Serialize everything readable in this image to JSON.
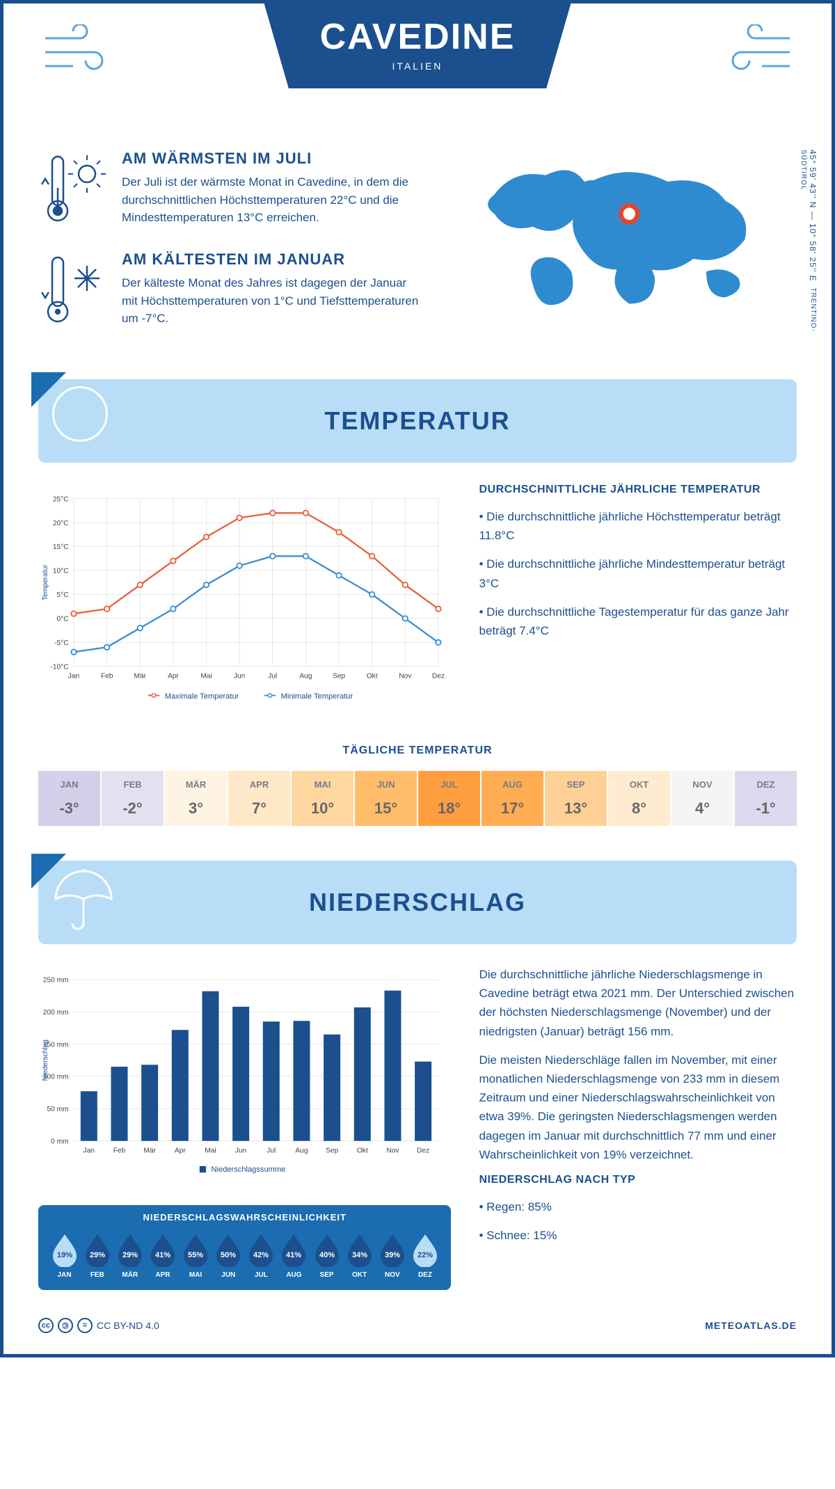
{
  "header": {
    "title": "CAVEDINE",
    "subtitle": "ITALIEN"
  },
  "coords": {
    "text": "45° 59' 43'' N — 10° 58' 25'' E",
    "region": "TRENTINO-SÜDTIROL"
  },
  "facts": {
    "warm": {
      "title": "AM WÄRMSTEN IM JULI",
      "text": "Der Juli ist der wärmste Monat in Cavedine, in dem die durchschnittlichen Höchsttemperaturen 22°C und die Mindesttemperaturen 13°C erreichen."
    },
    "cold": {
      "title": "AM KÄLTESTEN IM JANUAR",
      "text": "Der kälteste Monat des Jahres ist dagegen der Januar mit Höchsttemperaturen von 1°C und Tiefsttemperaturen um -7°C."
    }
  },
  "sections": {
    "temp": "TEMPERATUR",
    "precip": "NIEDERSCHLAG"
  },
  "temp_chart": {
    "type": "line",
    "months": [
      "Jan",
      "Feb",
      "Mär",
      "Apr",
      "Mai",
      "Jun",
      "Jul",
      "Aug",
      "Sep",
      "Okt",
      "Nov",
      "Dez"
    ],
    "max": [
      1,
      2,
      7,
      12,
      17,
      21,
      22,
      22,
      18,
      13,
      7,
      2
    ],
    "min": [
      -7,
      -6,
      -2,
      2,
      7,
      11,
      13,
      13,
      9,
      5,
      0,
      -5
    ],
    "ylim": [
      -10,
      25
    ],
    "ystep": 5,
    "ylabel": "Temperatur",
    "legend_max": "Maximale Temperatur",
    "legend_min": "Minimale Temperatur",
    "color_max": "#e8603c",
    "color_min": "#3b8ed4",
    "grid_color": "#cccccc",
    "bg": "#ffffff"
  },
  "temp_summary": {
    "title": "DURCHSCHNITTLICHE JÄHRLICHE TEMPERATUR",
    "items": [
      "Die durchschnittliche jährliche Höchsttemperatur beträgt 11.8°C",
      "Die durchschnittliche jährliche Mindesttemperatur beträgt 3°C",
      "Die durchschnittliche Tagestemperatur für das ganze Jahr beträgt 7.4°C"
    ]
  },
  "daily_temp": {
    "title": "TÄGLICHE TEMPERATUR",
    "months": [
      "JAN",
      "FEB",
      "MÄR",
      "APR",
      "MAI",
      "JUN",
      "JUL",
      "AUG",
      "SEP",
      "OKT",
      "NOV",
      "DEZ"
    ],
    "values": [
      "-3°",
      "-2°",
      "3°",
      "7°",
      "10°",
      "15°",
      "18°",
      "17°",
      "13°",
      "8°",
      "4°",
      "-1°"
    ],
    "colors": [
      "#d3d0ea",
      "#e3e0f0",
      "#fff4e3",
      "#ffe8c7",
      "#ffd8a0",
      "#ffbd6a",
      "#ff9e3e",
      "#ffac52",
      "#ffd095",
      "#ffecd0",
      "#f5f5f5",
      "#dcd9ee"
    ]
  },
  "precip_chart": {
    "type": "bar",
    "months": [
      "Jan",
      "Feb",
      "Mär",
      "Apr",
      "Mai",
      "Jun",
      "Jul",
      "Aug",
      "Sep",
      "Okt",
      "Nov",
      "Dez"
    ],
    "values": [
      77,
      115,
      118,
      172,
      232,
      208,
      185,
      186,
      165,
      207,
      233,
      123
    ],
    "ylim": [
      0,
      250
    ],
    "ystep": 50,
    "ylabel": "Niederschlag",
    "legend": "Niederschlagssumme",
    "bar_color": "#1b4f8e",
    "grid_color": "#cccccc"
  },
  "precip_text": {
    "p1": "Die durchschnittliche jährliche Niederschlagsmenge in Cavedine beträgt etwa 2021 mm. Der Unterschied zwischen der höchsten Niederschlagsmenge (November) und der niedrigsten (Januar) beträgt 156 mm.",
    "p2": "Die meisten Niederschläge fallen im November, mit einer monatlichen Niederschlagsmenge von 233 mm in diesem Zeitraum und einer Niederschlagswahrscheinlichkeit von etwa 39%. Die geringsten Niederschlagsmengen werden dagegen im Januar mit durchschnittlich 77 mm und einer Wahrscheinlichkeit von 19% verzeichnet.",
    "type_title": "NIEDERSCHLAG NACH TYP",
    "type_items": [
      "Regen: 85%",
      "Schnee: 15%"
    ]
  },
  "prob": {
    "title": "NIEDERSCHLAGSWAHRSCHEINLICHKEIT",
    "months": [
      "JAN",
      "FEB",
      "MÄR",
      "APR",
      "MAI",
      "JUN",
      "JUL",
      "AUG",
      "SEP",
      "OKT",
      "NOV",
      "DEZ"
    ],
    "pct": [
      "19%",
      "29%",
      "29%",
      "41%",
      "55%",
      "50%",
      "42%",
      "41%",
      "40%",
      "34%",
      "39%",
      "22%"
    ],
    "fill": [
      "#b9ddf7",
      "#1b4f8e",
      "#1b4f8e",
      "#1b4f8e",
      "#1b4f8e",
      "#1b4f8e",
      "#1b4f8e",
      "#1b4f8e",
      "#1b4f8e",
      "#1b4f8e",
      "#1b4f8e",
      "#b9ddf7"
    ]
  },
  "footer": {
    "license": "CC BY-ND 4.0",
    "site": "METEOATLAS.DE"
  }
}
